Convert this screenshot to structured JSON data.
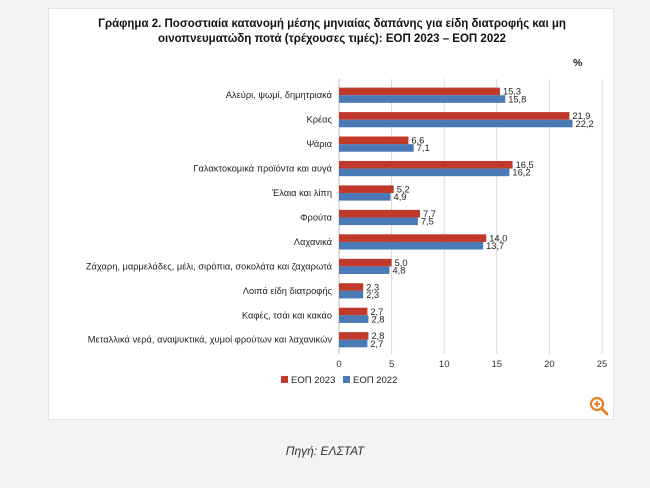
{
  "title_line1": "Γράφημα 2.  Ποσοστιαία κατανομή μέσης μηνιαίας δαπάνης για είδη διατροφής και μη",
  "title_line2": "οινοπνευματώδη ποτά (τρέχουσες τιμές): ΕΟΠ 2023 – ΕΟΠ 2022",
  "unit": "%",
  "source": "Πηγή: ΕΛΣΤΑΤ",
  "zoom_icon": "zoom-in-icon",
  "colors": {
    "series_2023": "#c0392b",
    "series_2022": "#4a7ab5"
  },
  "chart_data": {
    "type": "bar",
    "orientation": "horizontal",
    "categories": [
      "Αλεύρι, ψωμί, δημητριακά",
      "Κρέας",
      "Ψάρια",
      "Γαλακτοκομικά προϊόντα και αυγά",
      "Έλαια και λίπη",
      "Φρούτα",
      "Λαχανικά",
      "Ζάχαρη, μαρμελάδες, μέλι, σιρόπια, σοκολάτα και ζαχαρωτά",
      "Λοιπά είδη διατροφής",
      "Καφές, τσάι και κακάο",
      "Μεταλλικά νερά, αναψυκτικά, χυμοί φρούτων και λαχανικών"
    ],
    "series": [
      {
        "name": "ΕΟΠ 2023",
        "values": [
          15.3,
          21.9,
          6.6,
          16.5,
          5.2,
          7.7,
          14.0,
          5.0,
          2.3,
          2.7,
          2.8
        ],
        "labels": [
          "15,3",
          "21,9",
          "6,6",
          "16,5",
          "5,2",
          "7,7",
          "14,0",
          "5,0",
          "2,3",
          "2,7",
          "2,8"
        ]
      },
      {
        "name": "ΕΟΠ 2022",
        "values": [
          15.8,
          22.2,
          7.1,
          16.2,
          4.9,
          7.5,
          13.7,
          4.8,
          2.3,
          2.8,
          2.7
        ],
        "labels": [
          "15,8",
          "22,2",
          "7,1",
          "16,2",
          "4,9",
          "7,5",
          "13,7",
          "4,8",
          "2,3",
          "2,8",
          "2,7"
        ]
      }
    ],
    "xlim": [
      0,
      25
    ],
    "xticks": [
      "0",
      "5",
      "10",
      "15",
      "20",
      "25"
    ],
    "grid": true,
    "legend_position": "bottom-left"
  }
}
